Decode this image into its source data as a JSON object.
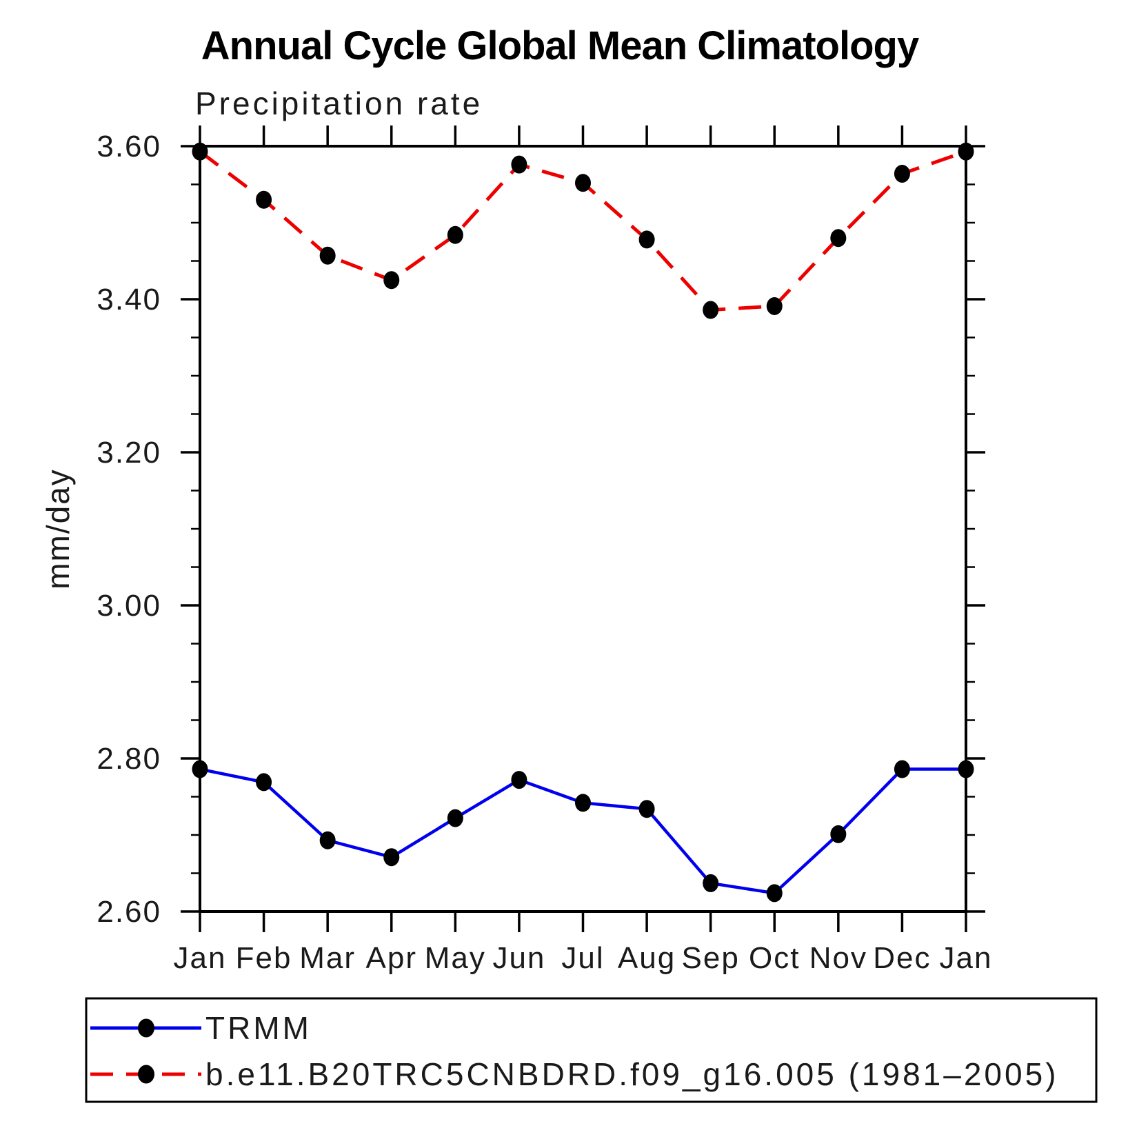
{
  "title": "Annual Cycle Global Mean Climatology",
  "subtitle": "Precipitation rate",
  "legend": {
    "items": [
      {
        "label": "TRMM",
        "color": "#0000ee",
        "style": "solid",
        "marker": "black-dot"
      },
      {
        "label": "b.e11.B20TRC5CNBDRD.f09_g16.005 (1981–2005)",
        "color": "#ee0000",
        "style": "dashed",
        "marker": "black-dot"
      }
    ]
  },
  "chart_data": {
    "type": "line",
    "title": "Annual Cycle Global Mean Climatology",
    "subtitle": "Precipitation rate",
    "xlabel": "",
    "ylabel": "mm/day",
    "categories": [
      "Jan",
      "Feb",
      "Mar",
      "Apr",
      "May",
      "Jun",
      "Jul",
      "Aug",
      "Sep",
      "Oct",
      "Nov",
      "Dec",
      "Jan"
    ],
    "series": [
      {
        "name": "TRMM",
        "color": "#0000ee",
        "line_style": "solid",
        "marker": "black-dot",
        "values": [
          2.786,
          2.769,
          2.693,
          2.671,
          2.722,
          2.772,
          2.742,
          2.734,
          2.637,
          2.624,
          2.701,
          2.786,
          2.786
        ]
      },
      {
        "name": "b.e11.B20TRC5CNBDRD.f09_g16.005 (1981–2005)",
        "color": "#ee0000",
        "line_style": "dashed",
        "marker": "black-dot",
        "values": [
          3.593,
          3.53,
          3.457,
          3.425,
          3.484,
          3.576,
          3.552,
          3.478,
          3.386,
          3.391,
          3.48,
          3.564,
          3.593
        ]
      }
    ],
    "ylim": [
      2.6,
      3.6
    ],
    "ytick_major": [
      2.6,
      2.8,
      3.0,
      3.2,
      3.4,
      3.6
    ],
    "ytick_major_labels": [
      "2.60",
      "2.80",
      "3.00",
      "3.20",
      "3.40",
      "3.60"
    ],
    "ytick_minor_step": 0.05,
    "grid": false,
    "legend_position": "bottom"
  }
}
